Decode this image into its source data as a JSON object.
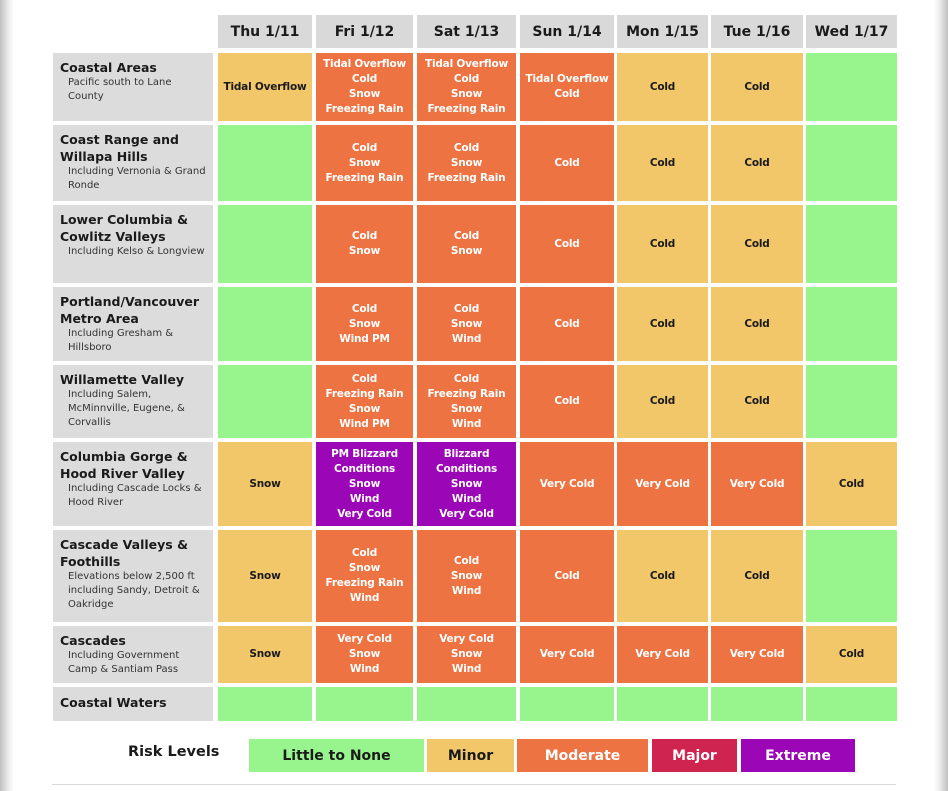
{
  "colors": {
    "none": "#98f58e",
    "minor": "#f2c769",
    "moderate": "#ed7343",
    "major": "#cf2350",
    "extreme": "#9b06b6"
  },
  "days": [
    "Thu 1/11",
    "Fri 1/12",
    "Sat 1/13",
    "Sun 1/14",
    "Mon 1/15",
    "Tue 1/16",
    "Wed 1/17"
  ],
  "rows": [
    {
      "name": "Coastal Areas",
      "sub": "Pacific south to Lane County",
      "cells": [
        {
          "level": "minor",
          "text": [
            "Tidal Overflow"
          ]
        },
        {
          "level": "moderate",
          "text": [
            "Tidal Overflow",
            "Cold",
            "Snow",
            "Freezing Rain"
          ]
        },
        {
          "level": "moderate",
          "text": [
            "Tidal Overflow",
            "Cold",
            "Snow",
            "Freezing Rain"
          ]
        },
        {
          "level": "moderate",
          "text": [
            "Tidal Overflow",
            "Cold"
          ]
        },
        {
          "level": "minor",
          "text": [
            "Cold"
          ]
        },
        {
          "level": "minor",
          "text": [
            "Cold"
          ]
        },
        {
          "level": "none",
          "text": []
        }
      ]
    },
    {
      "name": "Coast Range and Willapa Hills",
      "sub": "Including Vernonia & Grand Ronde",
      "cells": [
        {
          "level": "none",
          "text": []
        },
        {
          "level": "moderate",
          "text": [
            "Cold",
            "Snow",
            "Freezing Rain"
          ]
        },
        {
          "level": "moderate",
          "text": [
            "Cold",
            "Snow",
            "Freezing Rain"
          ]
        },
        {
          "level": "moderate",
          "text": [
            "Cold"
          ]
        },
        {
          "level": "minor",
          "text": [
            "Cold"
          ]
        },
        {
          "level": "minor",
          "text": [
            "Cold"
          ]
        },
        {
          "level": "none",
          "text": []
        }
      ]
    },
    {
      "name": "Lower Columbia & Cowlitz Valleys",
      "sub": "Including Kelso & Longview",
      "cells": [
        {
          "level": "none",
          "text": []
        },
        {
          "level": "moderate",
          "text": [
            "Cold",
            "Snow"
          ]
        },
        {
          "level": "moderate",
          "text": [
            "Cold",
            "Snow"
          ]
        },
        {
          "level": "moderate",
          "text": [
            "Cold"
          ]
        },
        {
          "level": "minor",
          "text": [
            "Cold"
          ]
        },
        {
          "level": "minor",
          "text": [
            "Cold"
          ]
        },
        {
          "level": "none",
          "text": []
        }
      ]
    },
    {
      "name": "Portland/Vancouver Metro Area",
      "sub": "Including Gresham & Hillsboro",
      "cells": [
        {
          "level": "none",
          "text": []
        },
        {
          "level": "moderate",
          "text": [
            "Cold",
            "Snow",
            "Wind PM"
          ]
        },
        {
          "level": "moderate",
          "text": [
            "Cold",
            "Snow",
            "Wind"
          ]
        },
        {
          "level": "moderate",
          "text": [
            "Cold"
          ]
        },
        {
          "level": "minor",
          "text": [
            "Cold"
          ]
        },
        {
          "level": "minor",
          "text": [
            "Cold"
          ]
        },
        {
          "level": "none",
          "text": []
        }
      ]
    },
    {
      "name": "Willamette Valley",
      "sub": "Including Salem, McMinnville, Eugene, & Corvallis",
      "cells": [
        {
          "level": "none",
          "text": []
        },
        {
          "level": "moderate",
          "text": [
            "Cold",
            "Freezing Rain",
            "Snow",
            "Wind PM"
          ]
        },
        {
          "level": "moderate",
          "text": [
            "Cold",
            "Freezing Rain",
            "Snow",
            "Wind"
          ]
        },
        {
          "level": "moderate",
          "text": [
            "Cold"
          ]
        },
        {
          "level": "minor",
          "text": [
            "Cold"
          ]
        },
        {
          "level": "minor",
          "text": [
            "Cold"
          ]
        },
        {
          "level": "none",
          "text": []
        }
      ]
    },
    {
      "name": "Columbia Gorge & Hood River Valley",
      "sub": "Including Cascade Locks & Hood River",
      "cells": [
        {
          "level": "minor",
          "text": [
            "Snow"
          ]
        },
        {
          "level": "extreme",
          "text": [
            "PM Blizzard",
            "Conditions",
            "Snow",
            "Wind",
            "Very Cold"
          ]
        },
        {
          "level": "extreme",
          "text": [
            "Blizzard",
            "Conditions",
            "Snow",
            "Wind",
            "Very Cold"
          ]
        },
        {
          "level": "moderate",
          "text": [
            "Very Cold"
          ]
        },
        {
          "level": "moderate",
          "text": [
            "Very Cold"
          ]
        },
        {
          "level": "moderate",
          "text": [
            "Very Cold"
          ]
        },
        {
          "level": "minor",
          "text": [
            "Cold"
          ]
        }
      ]
    },
    {
      "name": "Cascade Valleys & Foothills",
      "sub": "Elevations below 2,500 ft including Sandy, Detroit & Oakridge",
      "cells": [
        {
          "level": "minor",
          "text": [
            "Snow"
          ]
        },
        {
          "level": "moderate",
          "text": [
            "Cold",
            "Snow",
            "Freezing Rain",
            "Wind"
          ]
        },
        {
          "level": "moderate",
          "text": [
            "Cold",
            "Snow",
            "Wind"
          ]
        },
        {
          "level": "moderate",
          "text": [
            "Cold"
          ]
        },
        {
          "level": "minor",
          "text": [
            "Cold"
          ]
        },
        {
          "level": "minor",
          "text": [
            "Cold"
          ]
        },
        {
          "level": "none",
          "text": []
        }
      ]
    },
    {
      "name": "Cascades",
      "sub": "Including Government Camp & Santiam Pass",
      "cells": [
        {
          "level": "minor",
          "text": [
            "Snow"
          ]
        },
        {
          "level": "moderate",
          "text": [
            "Very Cold",
            "Snow",
            "Wind"
          ]
        },
        {
          "level": "moderate",
          "text": [
            "Very Cold",
            "Snow",
            "Wind"
          ]
        },
        {
          "level": "moderate",
          "text": [
            "Very Cold"
          ]
        },
        {
          "level": "moderate",
          "text": [
            "Very Cold"
          ]
        },
        {
          "level": "moderate",
          "text": [
            "Very Cold"
          ]
        },
        {
          "level": "minor",
          "text": [
            "Cold"
          ]
        }
      ]
    },
    {
      "name": "Coastal Waters",
      "sub": "",
      "cells": [
        {
          "level": "none",
          "text": []
        },
        {
          "level": "none",
          "text": []
        },
        {
          "level": "none",
          "text": []
        },
        {
          "level": "none",
          "text": []
        },
        {
          "level": "none",
          "text": []
        },
        {
          "level": "none",
          "text": []
        },
        {
          "level": "none",
          "text": []
        }
      ]
    }
  ],
  "legend": {
    "title": "Risk Levels",
    "items": [
      {
        "key": "none",
        "label": "Little to None"
      },
      {
        "key": "minor",
        "label": "Minor"
      },
      {
        "key": "moderate",
        "label": "Moderate"
      },
      {
        "key": "major",
        "label": "Major"
      },
      {
        "key": "extreme",
        "label": "Extreme"
      }
    ]
  }
}
